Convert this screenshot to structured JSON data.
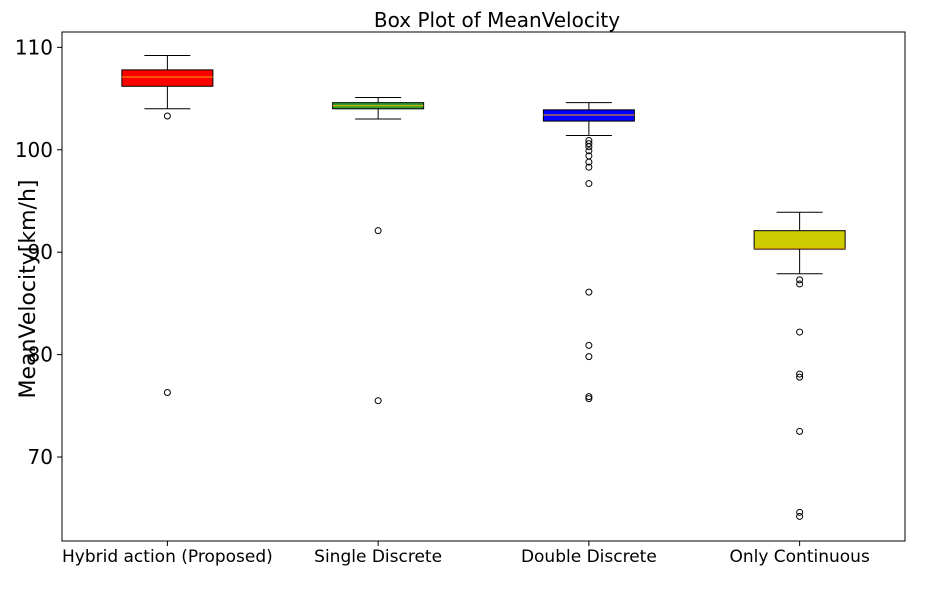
{
  "chart_data": {
    "type": "box",
    "title": "Box Plot of MeanVelocity",
    "xlabel": "",
    "ylabel": "MeanVelocity[km/h]",
    "ylim": [
      61.8,
      111.5
    ],
    "yticks": [
      70,
      80,
      90,
      100,
      110
    ],
    "grid": false,
    "legend": "none",
    "series": [
      {
        "name": "Hybrid action (Proposed)",
        "color": "#ff0000",
        "median_color": "#ffa500",
        "whisker_low": 104.0,
        "q1": 106.2,
        "median": 107.1,
        "q3": 107.8,
        "whisker_high": 109.2,
        "outliers": [
          103.3,
          76.3
        ]
      },
      {
        "name": "Single Discrete",
        "color": "#2ca02c",
        "median_color": "#ffa500",
        "whisker_low": 103.0,
        "q1": 104.0,
        "median": 104.3,
        "q3": 104.6,
        "whisker_high": 105.1,
        "outliers": [
          92.1,
          75.5
        ]
      },
      {
        "name": "Double Discrete",
        "color": "#0000ff",
        "median_color": "#ffa500",
        "whisker_low": 101.4,
        "q1": 102.8,
        "median": 103.4,
        "q3": 103.9,
        "whisker_high": 104.6,
        "outliers": [
          100.9,
          100.6,
          100.3,
          99.9,
          99.4,
          98.8,
          98.3,
          96.7,
          86.1,
          80.9,
          79.8,
          75.9,
          75.7
        ]
      },
      {
        "name": "Only Continuous",
        "color": "#cccc00",
        "median_color": "#ffa500",
        "whisker_low": 87.9,
        "q1": 90.3,
        "median": 90.4,
        "q3": 92.1,
        "whisker_high": 93.9,
        "outliers": [
          87.3,
          86.9,
          82.2,
          78.1,
          77.8,
          72.5,
          64.6,
          64.2
        ]
      }
    ]
  }
}
